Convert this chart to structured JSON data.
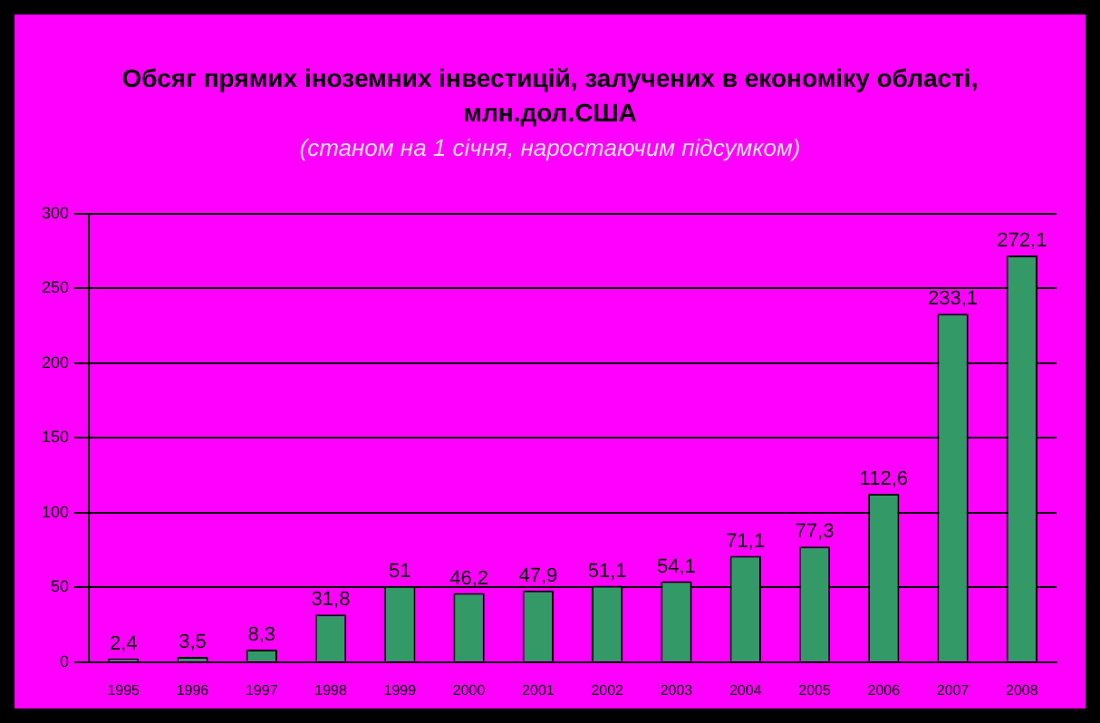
{
  "chart_data": {
    "type": "bar",
    "title": "Обсяг прямих іноземних інвестицій, залучених в економіку області, млн.дол.США",
    "subtitle": "(станом на 1 січня, наростаючим підсумком)",
    "categories": [
      "1995",
      "1996",
      "1997",
      "1998",
      "1999",
      "2000",
      "2001",
      "2002",
      "2003",
      "2004",
      "2005",
      "2006",
      "2007",
      "2008"
    ],
    "values": [
      2.4,
      3.5,
      8.3,
      31.8,
      51,
      46.2,
      47.9,
      51.1,
      54.1,
      71.1,
      77.3,
      112.6,
      233.1,
      272.1
    ],
    "value_labels": [
      "2,4",
      "3,5",
      "8,3",
      "31,8",
      "51",
      "46,2",
      "47,9",
      "51,1",
      "54,1",
      "71,1",
      "77,3",
      "112,6",
      "233,1",
      "272,1"
    ],
    "color": "#339966",
    "ylim": [
      0,
      300
    ],
    "yticks": [
      0,
      50,
      100,
      150,
      200,
      250,
      300
    ],
    "grid": "y",
    "legend": false
  }
}
